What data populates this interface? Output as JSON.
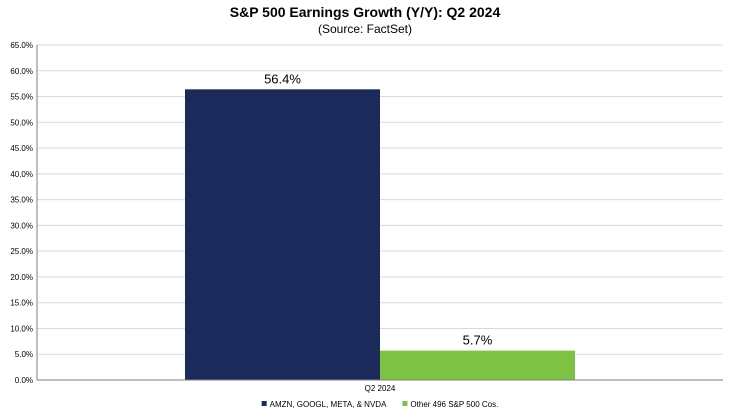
{
  "chart_data": {
    "type": "bar",
    "title": "S&P 500 Earnings Growth (Y/Y): Q2 2024",
    "subtitle": "(Source: FactSet)",
    "categories": [
      "Q2 2024"
    ],
    "series": [
      {
        "name": "AMZN, GOOGL, META, & NVDA",
        "values": [
          56.4
        ],
        "data_labels": [
          "56.4%"
        ],
        "color": "#1a2a5a"
      },
      {
        "name": "Other 496 S&P 500 Cos.",
        "values": [
          5.7
        ],
        "data_labels": [
          "5.7%"
        ],
        "color": "#7dc242"
      }
    ],
    "y_ticks": [
      "0.0%",
      "5.0%",
      "10.0%",
      "15.0%",
      "20.0%",
      "25.0%",
      "30.0%",
      "35.0%",
      "40.0%",
      "45.0%",
      "50.0%",
      "55.0%",
      "60.0%",
      "65.0%"
    ],
    "ylim": [
      0,
      65
    ],
    "xlabel": "",
    "ylabel": "",
    "grid": true,
    "legend_position": "bottom-center"
  }
}
